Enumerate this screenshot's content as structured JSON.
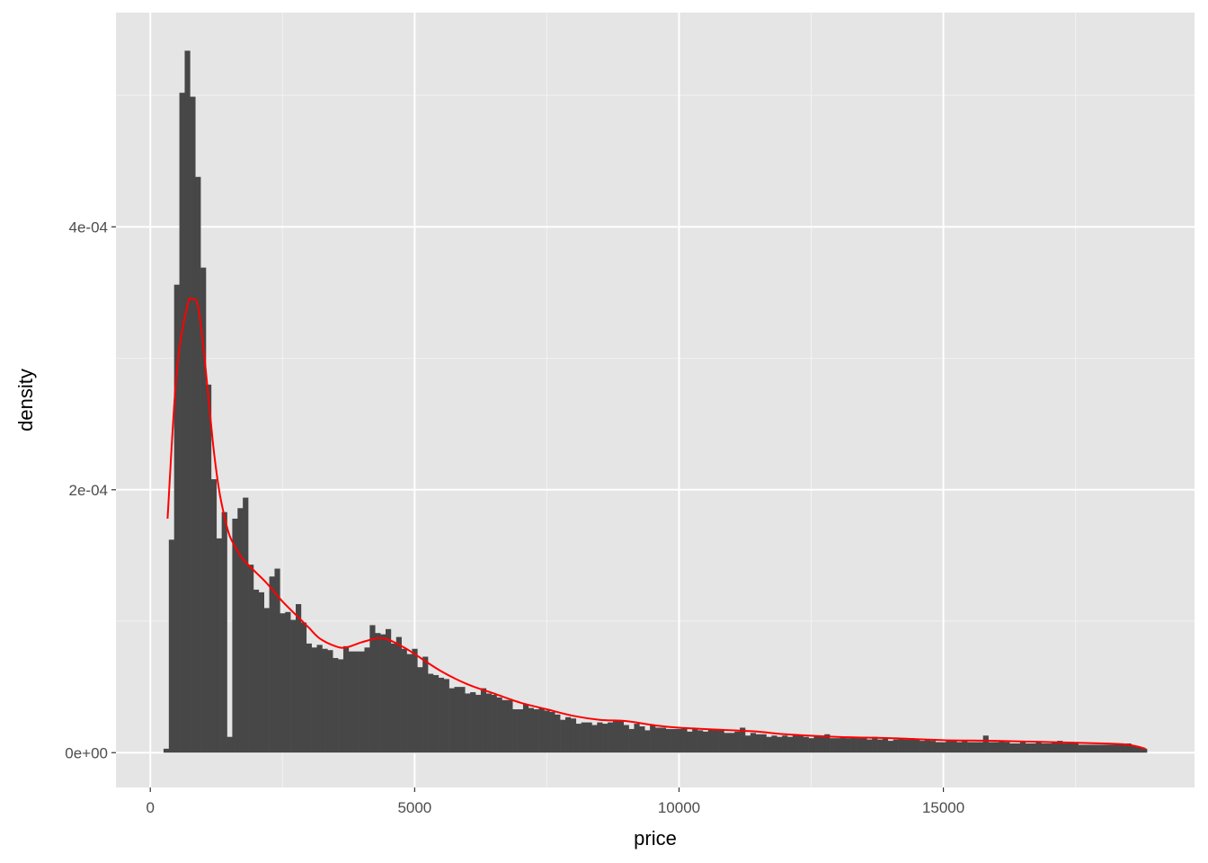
{
  "chart_data": {
    "type": "bar",
    "subtype": "histogram with density line",
    "xlabel": "price",
    "ylabel": "density",
    "xlim": [
      -650,
      19750
    ],
    "ylim": [
      -2.65e-05,
      0.000563
    ],
    "x_ticks": [
      0,
      5000,
      10000,
      15000
    ],
    "x_tick_labels": [
      "0",
      "5000",
      "10000",
      "15000"
    ],
    "y_ticks": [
      0,
      0.0002,
      0.0004
    ],
    "y_tick_labels": [
      "0e+00",
      "2e-04",
      "4e-04"
    ],
    "grid": true,
    "binwidth": 100,
    "bar_color": "#474747",
    "line_color": "#ff0000",
    "panel_background": "#e5e5e5",
    "x": [
      300,
      400,
      500,
      600,
      700,
      800,
      900,
      1000,
      1100,
      1200,
      1300,
      1400,
      1500,
      1600,
      1700,
      1800,
      1900,
      2000,
      2100,
      2200,
      2300,
      2400,
      2500,
      2600,
      2700,
      2800,
      2900,
      3000,
      3100,
      3200,
      3300,
      3400,
      3500,
      3600,
      3700,
      3800,
      3900,
      4000,
      4100,
      4200,
      4300,
      4400,
      4500,
      4600,
      4700,
      4800,
      4900,
      5000,
      5100,
      5200,
      5300,
      5400,
      5500,
      5600,
      5700,
      5800,
      5900,
      6000,
      6100,
      6200,
      6300,
      6400,
      6500,
      6600,
      6700,
      6800,
      6900,
      7000,
      7100,
      7200,
      7300,
      7400,
      7500,
      7600,
      7700,
      7800,
      7900,
      8000,
      8100,
      8200,
      8300,
      8400,
      8500,
      8600,
      8700,
      8800,
      8900,
      9000,
      9100,
      9200,
      9300,
      9400,
      9500,
      9600,
      9700,
      9800,
      9900,
      10000,
      10100,
      10200,
      10300,
      10400,
      10500,
      10600,
      10700,
      10800,
      10900,
      11000,
      11100,
      11200,
      11300,
      11400,
      11500,
      11600,
      11700,
      11800,
      11900,
      12000,
      12100,
      12200,
      12300,
      12400,
      12500,
      12600,
      12700,
      12800,
      12900,
      13000,
      13100,
      13200,
      13300,
      13400,
      13500,
      13600,
      13700,
      13800,
      13900,
      14000,
      14100,
      14200,
      14300,
      14400,
      14500,
      14600,
      14700,
      14800,
      14900,
      15000,
      15100,
      15200,
      15300,
      15400,
      15500,
      15600,
      15700,
      15800,
      15900,
      16000,
      16100,
      16200,
      16300,
      16400,
      16500,
      16600,
      16700,
      16800,
      16900,
      17000,
      17100,
      17200,
      17300,
      17400,
      17500,
      17600,
      17700,
      17800,
      17900,
      18000,
      18100,
      18200,
      18300,
      18400,
      18500,
      18600,
      18700,
      18800
    ],
    "values": [
      3e-06,
      0.000162,
      0.000356,
      0.000502,
      0.000534,
      0.000499,
      0.000438,
      0.000369,
      0.00028,
      0.000208,
      0.000163,
      0.000183,
      1.2e-05,
      0.000178,
      0.000186,
      0.000194,
      0.000143,
      0.000124,
      0.000122,
      0.00011,
      0.000134,
      0.00014,
      0.000106,
      0.000107,
      0.000101,
      0.000113,
      9.9e-05,
      8.3e-05,
      8e-05,
      8.2e-05,
      7.9e-05,
      7.8e-05,
      7.2e-05,
      7.1e-05,
      8.1e-05,
      7.7e-05,
      7.7e-05,
      7.7e-05,
      8e-05,
      9.7e-05,
      9.1e-05,
      9e-05,
      9.4e-05,
      8.3e-05,
      8.8e-05,
      7.9e-05,
      7.5e-05,
      7.9e-05,
      6.5e-05,
      7.3e-05,
      6e-05,
      5.9e-05,
      5.7e-05,
      5.6e-05,
      4.9e-05,
      5e-05,
      5e-05,
      4.5e-05,
      4.6e-05,
      4.4e-05,
      4.9e-05,
      4.5e-05,
      4.4e-05,
      4.2e-05,
      4e-05,
      4e-05,
      3.3e-05,
      3.3e-05,
      3.7e-05,
      3.4e-05,
      3.3e-05,
      3.4e-05,
      3.2e-05,
      3.1e-05,
      2.9e-05,
      2.5e-05,
      2.7e-05,
      2.6e-05,
      2.2e-05,
      2.3e-05,
      2.3e-05,
      2.1e-05,
      2.3e-05,
      2.2e-05,
      2.3e-05,
      2.4e-05,
      2.4e-05,
      2.1e-05,
      1.8e-05,
      2.2e-05,
      2e-05,
      1.7e-05,
      2.1e-05,
      1.9e-05,
      1.9e-05,
      1.8e-05,
      1.8e-05,
      1.8e-05,
      1.9e-05,
      1.6e-05,
      1.8e-05,
      1.7e-05,
      1.6e-05,
      1.8e-05,
      1.7e-05,
      1.7e-05,
      1.5e-05,
      1.5e-05,
      1.6e-05,
      1.9e-05,
      1.3e-05,
      1.5e-05,
      1.4e-05,
      1.4e-05,
      1.2e-05,
      1.3e-05,
      1.2e-05,
      1.3e-05,
      1.2e-05,
      1.4e-05,
      1.3e-05,
      1.2e-05,
      1.1e-05,
      1.3e-05,
      1.2e-05,
      1.4e-05,
      1.1e-05,
      1.1e-05,
      1.2e-05,
      1.1e-05,
      1.2e-05,
      1.1e-05,
      1.1e-05,
      1e-05,
      1.2e-05,
      1e-05,
      1.1e-05,
      9e-06,
      1e-05,
      1.1e-05,
      1e-05,
      1.1e-05,
      1e-05,
      9e-06,
      1e-05,
      9e-06,
      8e-06,
      8e-06,
      9e-06,
      9e-06,
      8e-06,
      9e-06,
      8e-06,
      8e-06,
      8e-06,
      1.3e-05,
      8e-06,
      8e-06,
      9e-06,
      8e-06,
      7e-06,
      7e-06,
      8e-06,
      7e-06,
      7e-06,
      8e-06,
      7e-06,
      7e-06,
      8e-06,
      9e-06,
      7e-06,
      7e-06,
      7e-06,
      6e-06,
      6e-06,
      6e-06,
      6e-06,
      6e-06,
      6e-06,
      6e-06,
      6e-06,
      6e-06,
      7e-06,
      5e-06,
      4e-06,
      3e-06
    ],
    "density_line": {
      "x": [
        326,
        500,
        700,
        800,
        900,
        1000,
        1100,
        1200,
        1300,
        1400,
        1500,
        1600,
        1700,
        1800,
        2000,
        2200,
        2500,
        2800,
        3000,
        3200,
        3500,
        3700,
        4000,
        4300,
        4500,
        4800,
        5000,
        5500,
        6000,
        6500,
        7000,
        7500,
        8000,
        8500,
        9000,
        9500,
        10000,
        11000,
        11500,
        12000,
        13000,
        14000,
        15000,
        16000,
        17000,
        18000,
        18500,
        18823
      ],
      "y": [
        0.000178,
        0.00029,
        0.00034,
        0.000345,
        0.00034,
        0.00031,
        0.00027,
        0.00023,
        0.0002,
        0.00018,
        0.000165,
        0.000157,
        0.00015,
        0.000145,
        0.000137,
        0.000129,
        0.000115,
        0.000103,
        9.5e-05,
        8.7e-05,
        8.1e-05,
        8e-05,
        8.4e-05,
        8.7e-05,
        8.6e-05,
        8e-05,
        7.5e-05,
        6.2e-05,
        5.2e-05,
        4.5e-05,
        3.8e-05,
        3.3e-05,
        2.8e-05,
        2.5e-05,
        2.4e-05,
        2.1e-05,
        1.9e-05,
        1.7e-05,
        1.6e-05,
        1.4e-05,
        1.2e-05,
        1.1e-05,
        9.5e-06,
        9e-06,
        8e-06,
        7e-06,
        6e-06,
        3e-06
      ]
    }
  }
}
